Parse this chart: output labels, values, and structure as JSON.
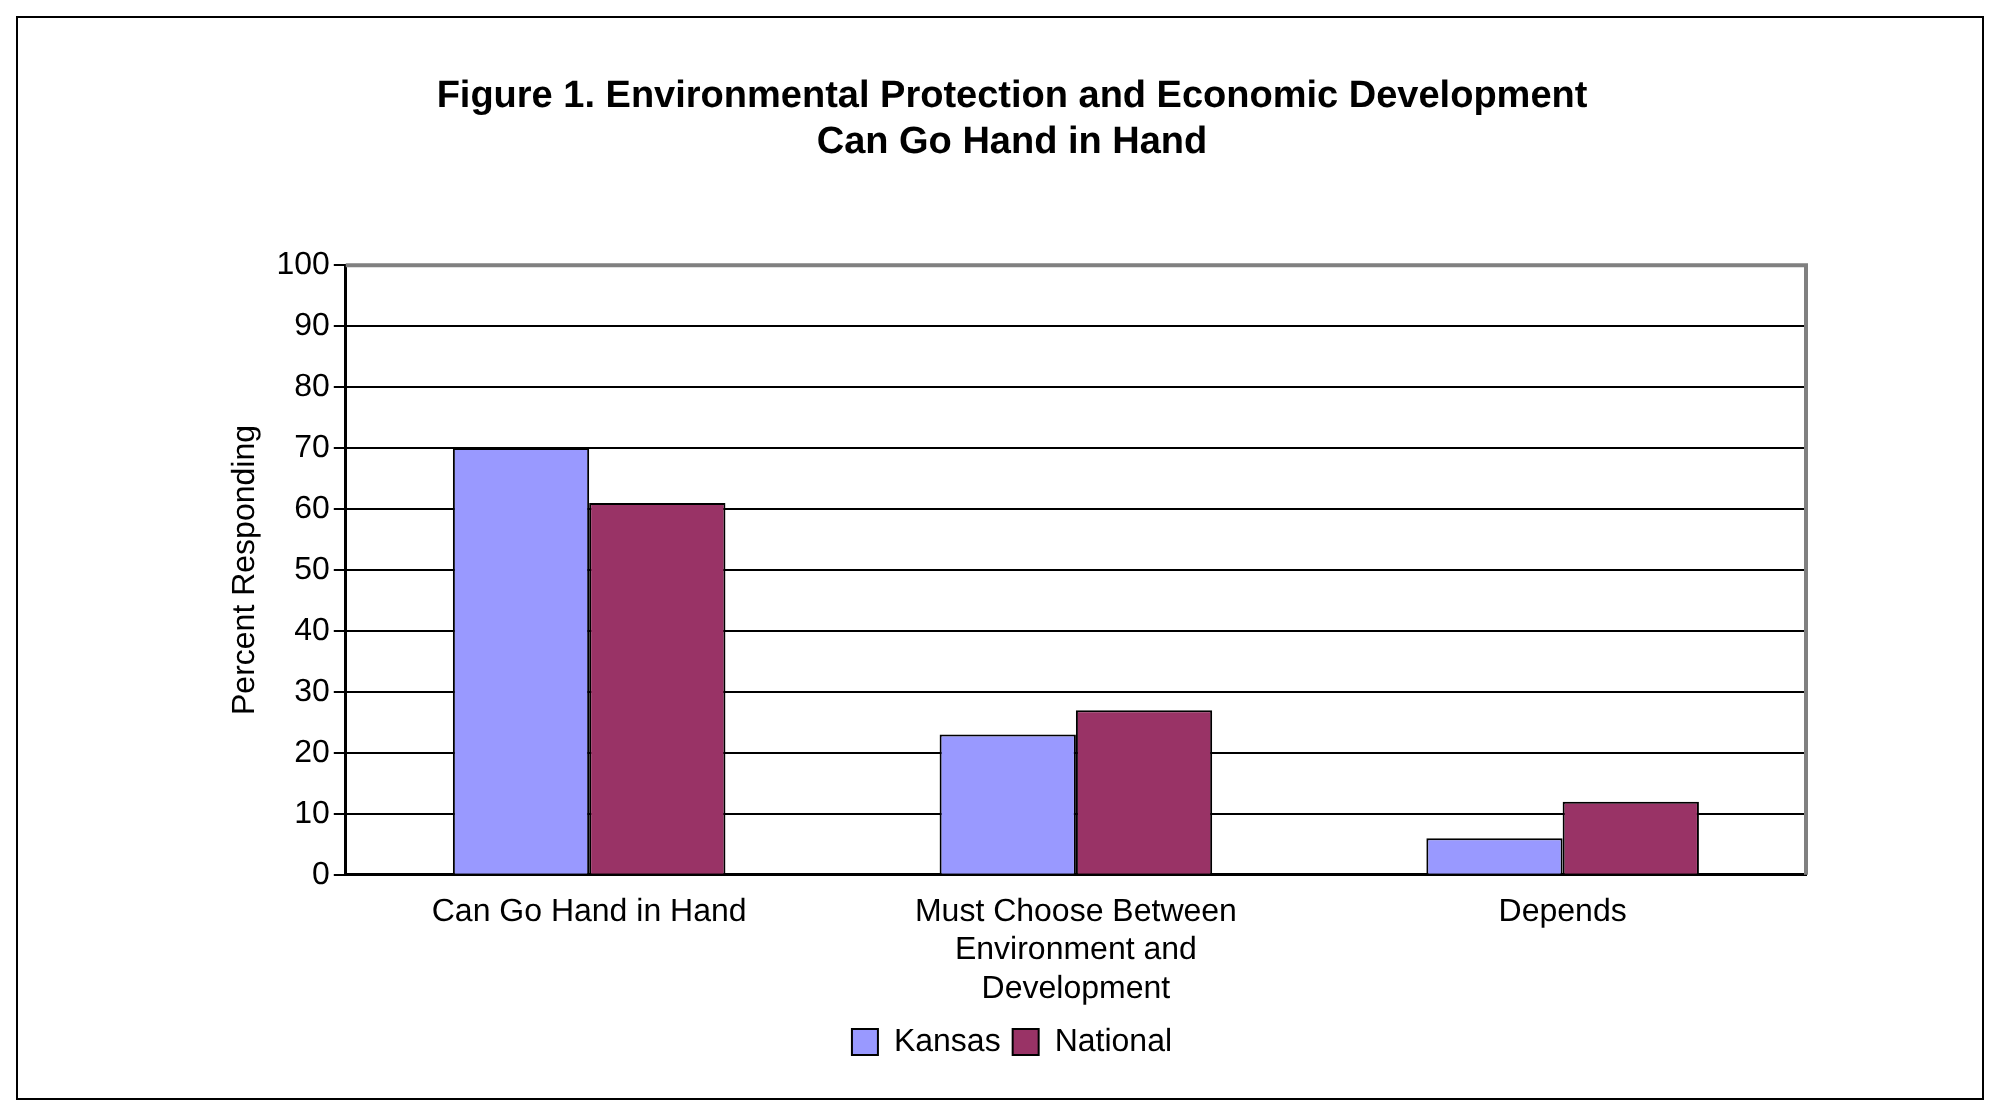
{
  "chart_data": {
    "type": "bar",
    "title": "Figure 1. Environmental Protection and Economic Development Can Go Hand in Hand",
    "ylabel": "Percent Responding",
    "categories": [
      "Can Go Hand in Hand",
      "Must Choose Between Environment and Development",
      "Depends"
    ],
    "series": [
      {
        "name": "Kansas",
        "color": "#9999ff",
        "values": [
          70,
          23,
          6
        ]
      },
      {
        "name": "National",
        "color": "#993366",
        "values": [
          61,
          27,
          12
        ]
      }
    ],
    "ylim": [
      0,
      100
    ],
    "yticks": [
      0,
      10,
      20,
      30,
      40,
      50,
      60,
      70,
      80,
      90,
      100
    ],
    "grid": "y",
    "legend": "bottom"
  }
}
